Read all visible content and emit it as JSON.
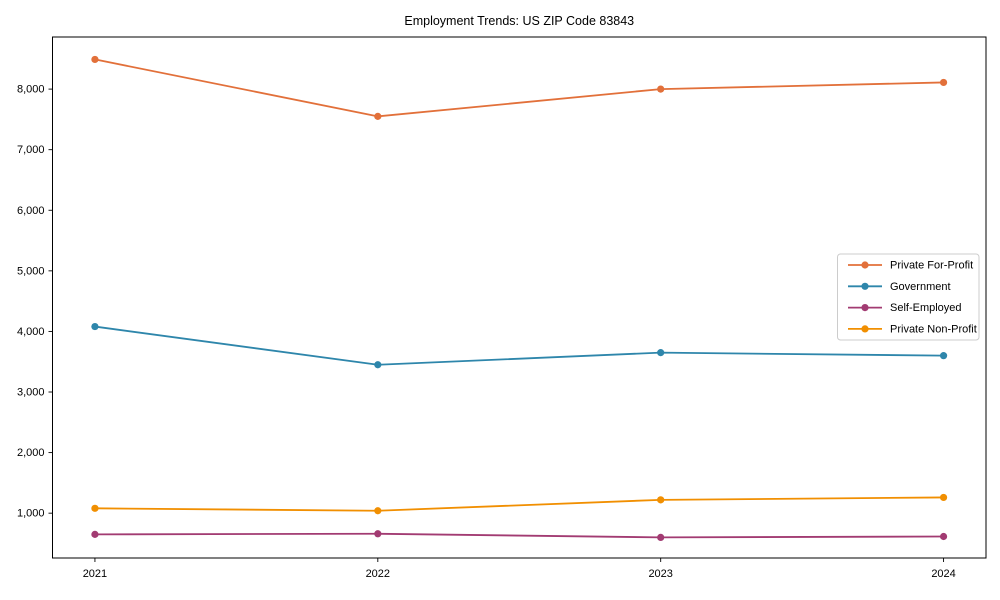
{
  "figure": {
    "background": "#ffffff",
    "axis_color": "#000000"
  },
  "chart_data": {
    "type": "line",
    "title": "Employment Trends: US ZIP Code 83843",
    "x": [
      2021,
      2022,
      2023,
      2024
    ],
    "x_tick_labels": [
      "2021",
      "2022",
      "2023",
      "2024"
    ],
    "y_ticks": [
      1000,
      2000,
      3000,
      4000,
      5000,
      6000,
      7000,
      8000
    ],
    "y_tick_labels": [
      "1,000",
      "2,000",
      "3,000",
      "4,000",
      "5,000",
      "6,000",
      "7,000",
      "8,000"
    ],
    "xlim": [
      2020.85,
      2024.15
    ],
    "ylim": [
      260,
      8860
    ],
    "grid": false,
    "legend_position": "center-right",
    "marker": "circle",
    "series": [
      {
        "name": "Private For-Profit",
        "color": "#E2703A",
        "values": [
          8490,
          7550,
          8000,
          8110
        ]
      },
      {
        "name": "Government",
        "color": "#2E86AB",
        "values": [
          4080,
          3450,
          3650,
          3600
        ]
      },
      {
        "name": "Self-Employed",
        "color": "#A23B72",
        "values": [
          650,
          660,
          600,
          615
        ]
      },
      {
        "name": "Private Non-Profit",
        "color": "#F18F01",
        "values": [
          1080,
          1040,
          1220,
          1260
        ]
      }
    ]
  }
}
